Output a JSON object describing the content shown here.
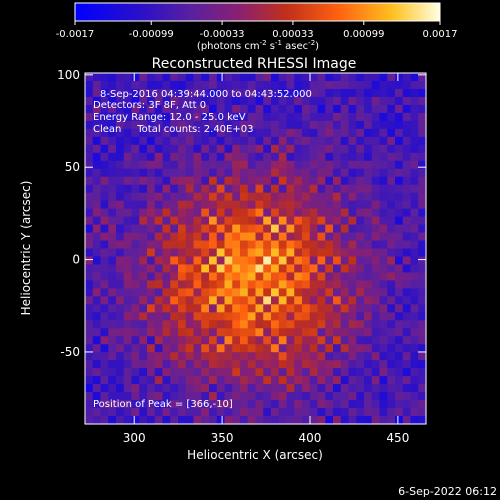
{
  "chart_data": {
    "type": "heatmap",
    "title": "Reconstructed RHESSI Image",
    "xlabel": "Heliocentric X (arcsec)",
    "ylabel": "Heliocentric Y (arcsec)",
    "xlim": [
      272,
      466
    ],
    "ylim": [
      -89,
      101
    ],
    "x_ticks": [
      300,
      350,
      400,
      450
    ],
    "y_ticks": [
      -50,
      0,
      50,
      100
    ],
    "colorbar": {
      "min": -0.0017,
      "max": 0.0017,
      "tick_values": [
        -0.0017,
        -0.00099,
        -0.00033,
        0.00033,
        0.00099,
        0.0017
      ],
      "tick_labels": [
        "-0.0017",
        "-0.00099",
        "-0.00033",
        "0.00033",
        "0.00099",
        "0.0017"
      ],
      "units_prefix": "(photons cm",
      "units_exp1": "-2",
      "units_mid1": " s",
      "units_exp2": "-1",
      "units_mid2": " asec",
      "units_exp3": "-2",
      "units_suffix": ")"
    },
    "annotations": [
      "8-Sep-2016 04:39:44.000 to 04:43:52.000",
      "Detectors: 3F 8F, Att 0",
      "Energy Range: 12.0 - 25.0 keV",
      "Clean     Total counts: 2.40E+03"
    ],
    "peak_label": "Position of Peak = [366,-10]",
    "peak": {
      "x": 366,
      "y": -10
    },
    "grid": false,
    "colors": [
      "#0000ff",
      "#3a1f8a",
      "#6a2c9e",
      "#c0301a",
      "#ff6010",
      "#ffc020",
      "#ffffd0"
    ]
  },
  "footer": {
    "timestamp": "6-Sep-2022 06:12"
  }
}
